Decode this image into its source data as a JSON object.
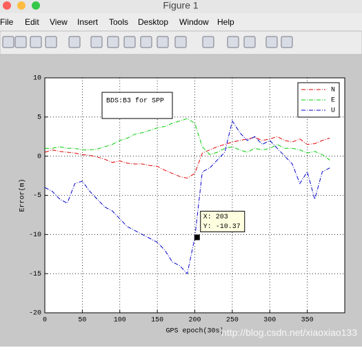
{
  "window": {
    "title": "Figure 1",
    "menu": [
      "File",
      "Edit",
      "View",
      "Insert",
      "Tools",
      "Desktop",
      "Window",
      "Help"
    ]
  },
  "chart_data": {
    "type": "line",
    "annotation": "BDS:B3 for SPP",
    "xlabel": "GPS epoch(30s)",
    "ylabel": "Error(m)",
    "x": [
      0,
      10,
      20,
      30,
      40,
      50,
      60,
      70,
      80,
      90,
      100,
      110,
      120,
      130,
      140,
      150,
      160,
      170,
      180,
      190,
      200,
      210,
      220,
      230,
      240,
      250,
      260,
      270,
      280,
      290,
      300,
      310,
      320,
      330,
      340,
      350,
      360,
      370,
      380
    ],
    "series": [
      {
        "name": "N",
        "color": "#e00000",
        "values": [
          0.5,
          0.8,
          0.6,
          0.5,
          0.4,
          0.2,
          0.1,
          -0.1,
          -0.4,
          -0.8,
          -0.6,
          -0.9,
          -1.0,
          -1.0,
          -1.2,
          -1.3,
          -1.8,
          -2.2,
          -2.6,
          -2.8,
          -2.2,
          0.4,
          0.8,
          1.2,
          1.5,
          1.8,
          2.0,
          2.2,
          2.4,
          2.0,
          2.2,
          2.5,
          2.0,
          1.8,
          2.2,
          1.5,
          1.6,
          2.0,
          2.3
        ]
      },
      {
        "name": "E",
        "color": "#00cc00",
        "values": [
          1.0,
          1.0,
          1.2,
          1.0,
          1.0,
          0.8,
          0.8,
          0.9,
          1.2,
          1.5,
          2.0,
          2.3,
          2.8,
          3.0,
          3.3,
          3.6,
          3.8,
          4.2,
          4.5,
          4.8,
          4.2,
          1.2,
          0.2,
          0.5,
          1.0,
          1.2,
          0.8,
          0.5,
          1.0,
          0.8,
          1.0,
          1.5,
          1.0,
          1.0,
          0.8,
          0.4,
          0.6,
          0.2,
          -0.5
        ]
      },
      {
        "name": "U",
        "color": "#0000cc",
        "values": [
          -4,
          -4.5,
          -5.5,
          -6,
          -3.5,
          -3.2,
          -4.5,
          -5.5,
          -6.5,
          -7,
          -8,
          -9,
          -9.5,
          -10,
          -10.5,
          -11,
          -12,
          -13.5,
          -14,
          -15,
          -10.4,
          -2,
          -1.5,
          -0.5,
          0.5,
          4.5,
          3,
          2,
          2.5,
          1.5,
          2,
          1,
          0,
          -1,
          -3.5,
          -2,
          -5.5,
          -2,
          -1.5
        ]
      }
    ],
    "datatip": {
      "x": 203,
      "y": -10.37,
      "x_label": "X: 203",
      "y_label": "Y: -10.37"
    },
    "xlim": [
      0,
      400
    ],
    "xticks": [
      0,
      50,
      100,
      150,
      200,
      250,
      300,
      350
    ],
    "ylim": [
      -20,
      10
    ],
    "yticks": [
      -20,
      -15,
      -10,
      -5,
      0,
      5,
      10
    ],
    "grid": true,
    "legend": "northeast",
    "watermark": "http://blog.csdn.net/xiaoxiao133"
  }
}
